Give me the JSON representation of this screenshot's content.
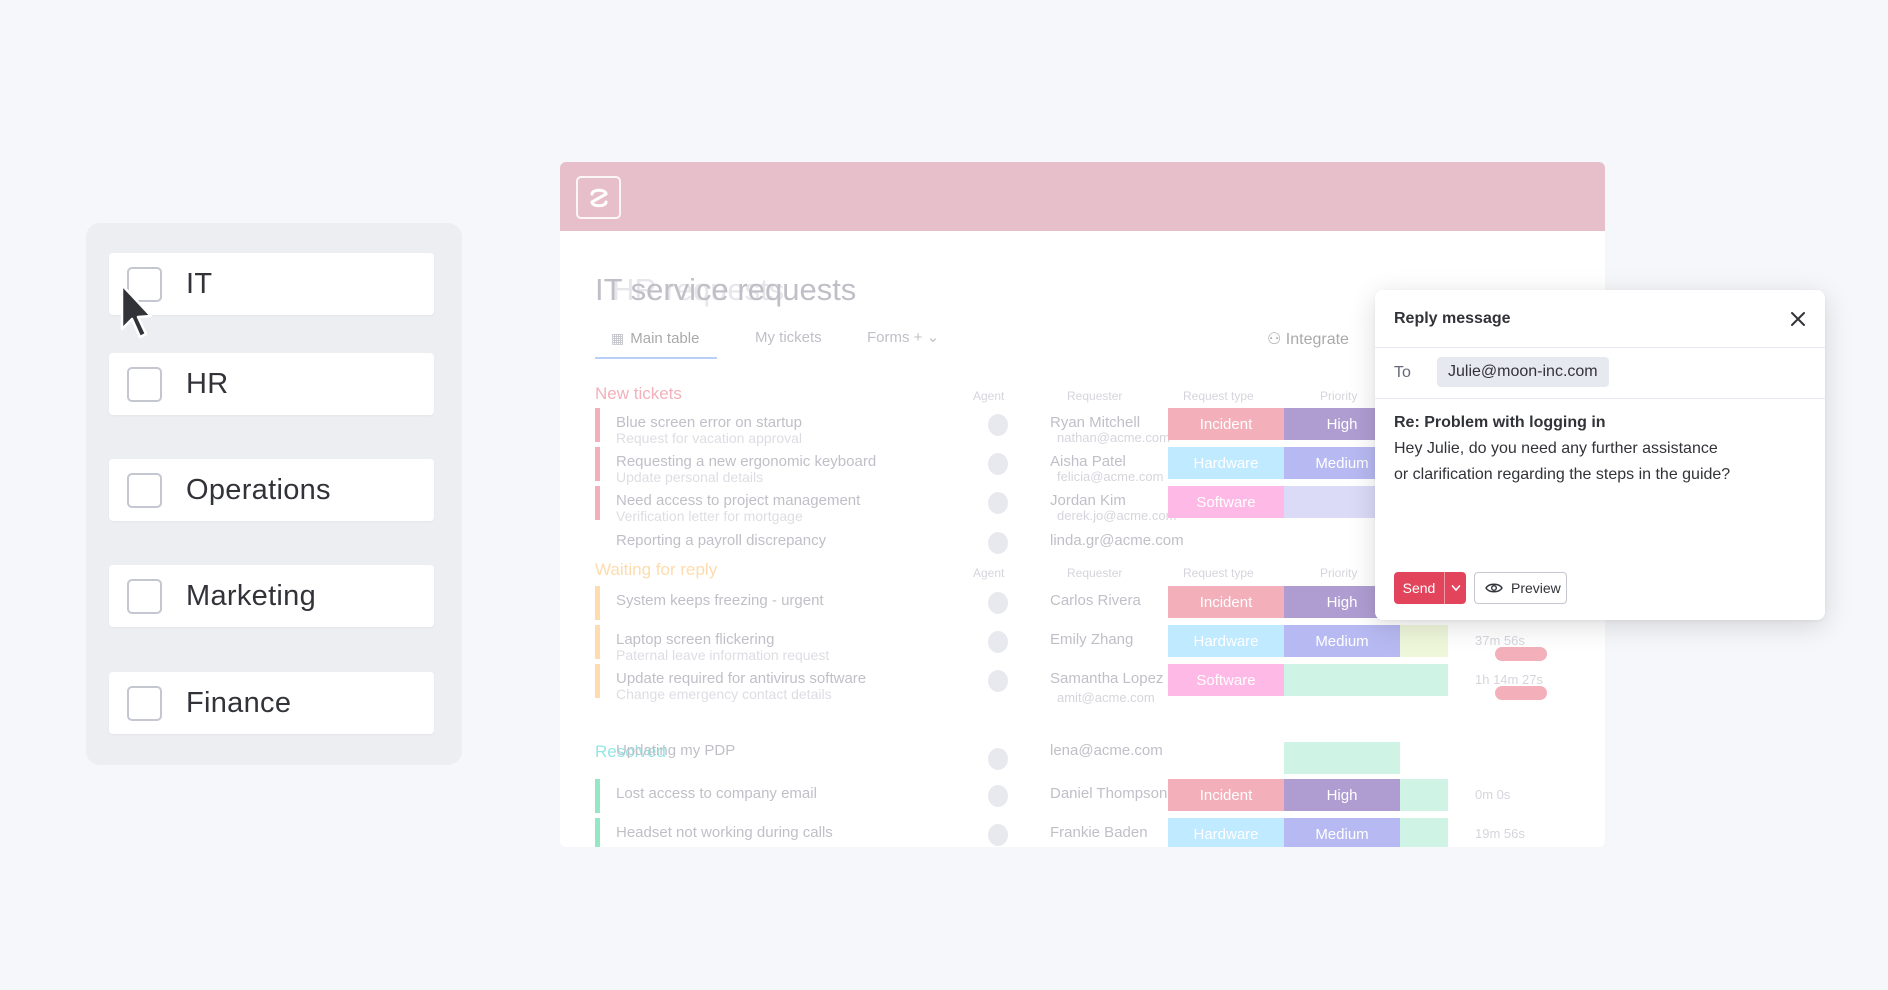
{
  "departments": {
    "items": [
      {
        "label": "IT",
        "checked": false
      },
      {
        "label": "HR",
        "checked": false
      },
      {
        "label": "Operations",
        "checked": false
      },
      {
        "label": "Marketing",
        "checked": false
      },
      {
        "label": "Finance",
        "checked": false
      }
    ]
  },
  "app": {
    "title": "IT service requests",
    "title_ghost": "HR requests",
    "tabs": {
      "main": "Main table",
      "my_tickets": "My tickets",
      "forms": "Forms"
    },
    "integrate_label": "Integrate",
    "groups": {
      "new": "New tickets",
      "waiting": "Waiting for reply",
      "resolved": "Resolved"
    },
    "columns": {
      "agent": "Agent",
      "requester": "Requester",
      "request_type": "Request type",
      "priority": "Priority"
    },
    "rows": [
      {
        "task": "Blue screen error on startup",
        "sub": "Request for vacation approval",
        "person": "Ryan Mitchell",
        "email": "nathan@acme.com",
        "type": "Incident",
        "priority": "High"
      },
      {
        "task": "Requesting a new ergonomic keyboard",
        "sub": "Update personal details",
        "person": "Aisha Patel",
        "email": "felicia@acme.com",
        "type": "Hardware",
        "priority": "Medium"
      },
      {
        "task": "Need access to project management",
        "sub": "Verification letter for mortgage",
        "person": "Jordan Kim",
        "email": "derek.jo@acme.com",
        "type": "Software",
        "priority": ""
      },
      {
        "task": "Reporting a payroll discrepancy",
        "sub": "",
        "person": "",
        "email": "linda.gr@acme.com",
        "type": "",
        "priority": ""
      },
      {
        "task": "System keeps freezing - urgent",
        "sub": "",
        "person": "Carlos Rivera",
        "email": "",
        "type": "Incident",
        "priority": "High"
      },
      {
        "task": "Laptop screen flickering",
        "sub": "Paternal leave information request",
        "person": "Emily Zhang",
        "email": "",
        "type": "Hardware",
        "priority": "Medium"
      },
      {
        "task": "Update required for antivirus software",
        "sub": "Change emergency contact details",
        "person": "Samantha Lopez",
        "email": "amit@acme.com",
        "type": "Software",
        "priority": ""
      },
      {
        "task": "Updating my PDP",
        "sub": "",
        "person": "",
        "email": "lena@acme.com",
        "type": "",
        "priority": ""
      },
      {
        "task": "Lost access to company email",
        "sub": "",
        "person": "Daniel Thompson",
        "email": "",
        "type": "Incident",
        "priority": "High"
      },
      {
        "task": "Headset not working during calls",
        "sub": "",
        "person": "Frankie Baden",
        "email": "",
        "type": "Hardware",
        "priority": "Medium"
      }
    ],
    "times": [
      "37m 56s",
      "1h 14m 27s",
      "0m 0s",
      "19m 56s"
    ],
    "colors": {
      "header": "#e7bfcb",
      "incident": "#e2445c",
      "hardware": "#66ccff",
      "software": "#ff5ac4",
      "high": "#401694",
      "medium": "#5559df"
    }
  },
  "reply": {
    "title": "Reply message",
    "to_label": "To",
    "to_email": "Julie@moon-inc.com",
    "subject": "Re: Problem with logging in",
    "body_line1": "Hey Julie, do you need any further assistance",
    "body_line2": "or clarification regarding the steps in the guide?",
    "send_label": "Send",
    "preview_label": "Preview",
    "colors": {
      "send": "#e2445c"
    }
  }
}
